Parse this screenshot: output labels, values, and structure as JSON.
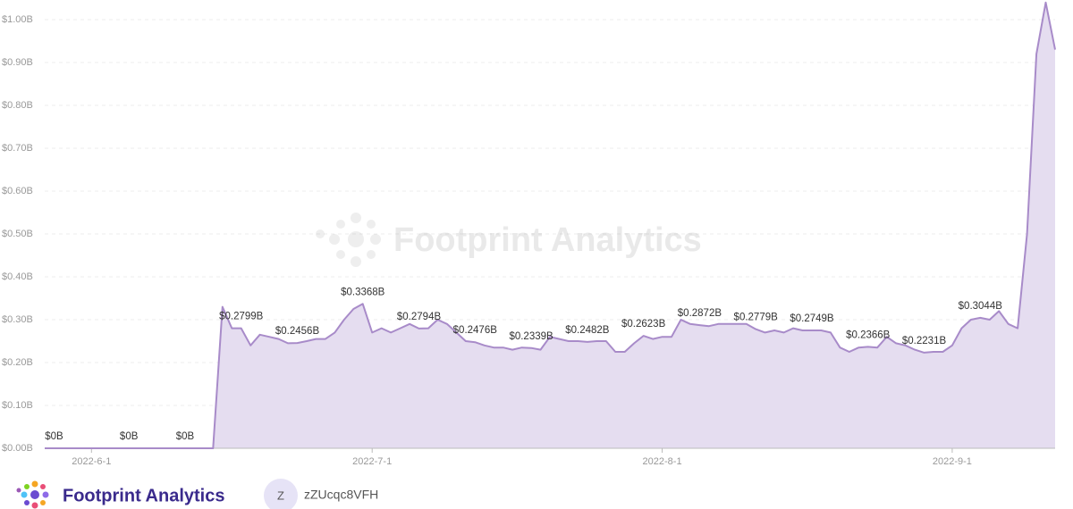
{
  "chart_data": {
    "type": "area",
    "x": [
      "2022-5-27",
      "2022-5-28",
      "2022-5-29",
      "2022-5-30",
      "2022-5-31",
      "2022-6-1",
      "2022-6-2",
      "2022-6-3",
      "2022-6-4",
      "2022-6-5",
      "2022-6-6",
      "2022-6-7",
      "2022-6-8",
      "2022-6-9",
      "2022-6-10",
      "2022-6-11",
      "2022-6-12",
      "2022-6-13",
      "2022-6-14",
      "2022-6-15",
      "2022-6-16",
      "2022-6-17",
      "2022-6-18",
      "2022-6-19",
      "2022-6-20",
      "2022-6-21",
      "2022-6-22",
      "2022-6-23",
      "2022-6-24",
      "2022-6-25",
      "2022-6-26",
      "2022-6-27",
      "2022-6-28",
      "2022-6-29",
      "2022-6-30",
      "2022-7-1",
      "2022-7-2",
      "2022-7-3",
      "2022-7-4",
      "2022-7-5",
      "2022-7-6",
      "2022-7-7",
      "2022-7-8",
      "2022-7-9",
      "2022-7-10",
      "2022-7-11",
      "2022-7-12",
      "2022-7-13",
      "2022-7-14",
      "2022-7-15",
      "2022-7-16",
      "2022-7-17",
      "2022-7-18",
      "2022-7-19",
      "2022-7-20",
      "2022-7-21",
      "2022-7-22",
      "2022-7-23",
      "2022-7-24",
      "2022-7-25",
      "2022-7-26",
      "2022-7-27",
      "2022-7-28",
      "2022-7-29",
      "2022-7-30",
      "2022-7-31",
      "2022-8-1",
      "2022-8-2",
      "2022-8-3",
      "2022-8-4",
      "2022-8-5",
      "2022-8-6",
      "2022-8-7",
      "2022-8-8",
      "2022-8-9",
      "2022-8-10",
      "2022-8-11",
      "2022-8-12",
      "2022-8-13",
      "2022-8-14",
      "2022-8-15",
      "2022-8-16",
      "2022-8-17",
      "2022-8-18",
      "2022-8-19",
      "2022-8-20",
      "2022-8-21",
      "2022-8-22",
      "2022-8-23",
      "2022-8-24",
      "2022-8-25",
      "2022-8-26",
      "2022-8-27",
      "2022-8-28",
      "2022-8-29",
      "2022-8-30",
      "2022-8-31",
      "2022-9-1",
      "2022-9-2",
      "2022-9-3",
      "2022-9-4",
      "2022-9-5",
      "2022-9-6",
      "2022-9-7",
      "2022-9-8",
      "2022-9-9",
      "2022-9-10",
      "2022-9-11",
      "2022-9-12"
    ],
    "values": [
      0,
      0,
      0,
      0,
      0,
      0,
      0,
      0,
      0,
      0,
      0,
      0,
      0,
      0,
      0,
      0,
      0,
      0,
      0,
      0.33,
      0.28,
      0.2799,
      0.24,
      0.265,
      0.26,
      0.255,
      0.245,
      0.2456,
      0.25,
      0.255,
      0.255,
      0.27,
      0.3,
      0.325,
      0.3368,
      0.27,
      0.28,
      0.27,
      0.28,
      0.29,
      0.2794,
      0.28,
      0.3,
      0.29,
      0.27,
      0.25,
      0.2476,
      0.24,
      0.235,
      0.235,
      0.23,
      0.235,
      0.2339,
      0.23,
      0.26,
      0.255,
      0.25,
      0.25,
      0.2482,
      0.25,
      0.25,
      0.225,
      0.225,
      0.245,
      0.2623,
      0.255,
      0.26,
      0.26,
      0.3,
      0.29,
      0.2872,
      0.285,
      0.29,
      0.29,
      0.29,
      0.29,
      0.2779,
      0.27,
      0.275,
      0.27,
      0.28,
      0.275,
      0.2749,
      0.275,
      0.27,
      0.235,
      0.225,
      0.235,
      0.2366,
      0.235,
      0.26,
      0.245,
      0.24,
      0.23,
      0.2231,
      0.225,
      0.225,
      0.24,
      0.28,
      0.3,
      0.3044,
      0.3,
      0.32,
      0.29,
      0.28,
      0.5,
      0.92,
      1.04,
      0.93
    ],
    "value_labels": [
      null,
      "$0B",
      null,
      null,
      null,
      null,
      null,
      null,
      null,
      "$0B",
      null,
      null,
      null,
      null,
      null,
      "$0B",
      null,
      null,
      null,
      null,
      null,
      "$0.2799B",
      null,
      null,
      null,
      null,
      null,
      "$0.2456B",
      null,
      null,
      null,
      null,
      null,
      null,
      "$0.3368B",
      null,
      null,
      null,
      null,
      null,
      "$0.2794B",
      null,
      null,
      null,
      null,
      null,
      "$0.2476B",
      null,
      null,
      null,
      null,
      null,
      "$0.2339B",
      null,
      null,
      null,
      null,
      null,
      "$0.2482B",
      null,
      null,
      null,
      null,
      null,
      "$0.2623B",
      null,
      null,
      null,
      null,
      null,
      "$0.2872B",
      null,
      null,
      null,
      null,
      null,
      "$0.2779B",
      null,
      null,
      null,
      null,
      null,
      "$0.2749B",
      null,
      null,
      null,
      null,
      null,
      "$0.2366B",
      null,
      null,
      null,
      null,
      null,
      "$0.2231B",
      null,
      null,
      null,
      null,
      null,
      "$0.3044B",
      null,
      null,
      null,
      null,
      null,
      null,
      null,
      null
    ],
    "color": "#a88bc9",
    "fill": "#e5ddf0",
    "xlim": [
      "2022-5-27",
      "2022-9-12"
    ],
    "xticks": [
      "2022-6-1",
      "2022-7-1",
      "2022-8-1",
      "2022-9-1"
    ],
    "ylim": [
      0,
      1
    ],
    "yticks": [
      {
        "value": 0,
        "label": "$0.00B"
      },
      {
        "value": 0.1,
        "label": "$0.10B"
      },
      {
        "value": 0.2,
        "label": "$0.20B"
      },
      {
        "value": 0.3,
        "label": "$0.30B"
      },
      {
        "value": 0.4,
        "label": "$0.40B"
      },
      {
        "value": 0.5,
        "label": "$0.50B"
      },
      {
        "value": 0.6,
        "label": "$0.60B"
      },
      {
        "value": 0.7,
        "label": "$0.70B"
      },
      {
        "value": 0.8,
        "label": "$0.80B"
      },
      {
        "value": 0.9,
        "label": "$0.90B"
      },
      {
        "value": 1,
        "label": "$1.00B"
      }
    ],
    "grid": true
  },
  "branding": {
    "watermark": "Footprint Analytics",
    "brand": "Footprint Analytics",
    "avatar": "Z",
    "user": "zZUcqc8VFH"
  }
}
